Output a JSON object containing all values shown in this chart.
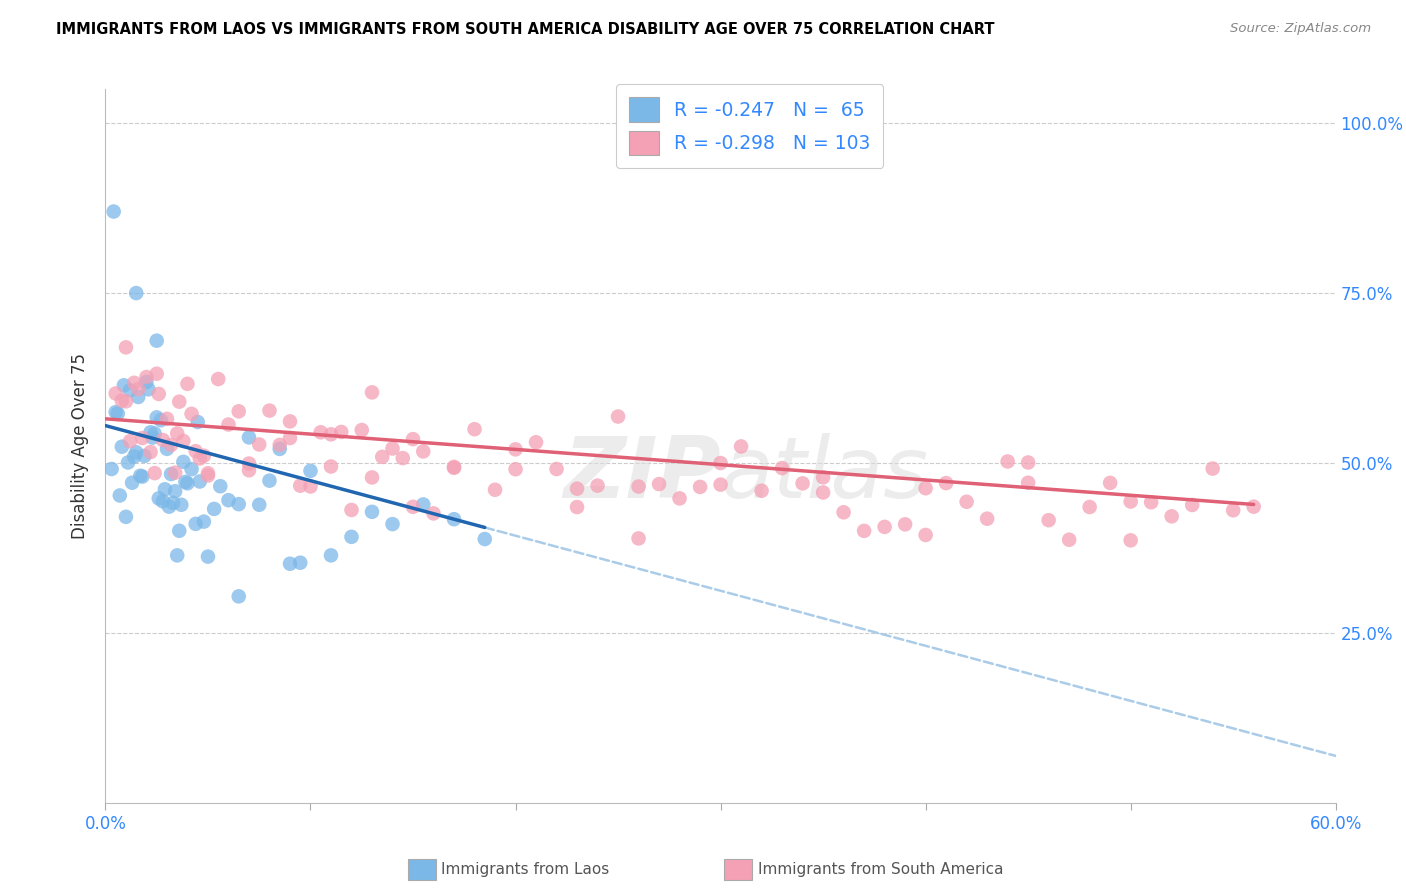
{
  "title": "IMMIGRANTS FROM LAOS VS IMMIGRANTS FROM SOUTH AMERICA DISABILITY AGE OVER 75 CORRELATION CHART",
  "source": "Source: ZipAtlas.com",
  "ylabel": "Disability Age Over 75",
  "xlabel_laos": "Immigrants from Laos",
  "xlabel_sa": "Immigrants from South America",
  "xmin": 0.0,
  "xmax": 0.6,
  "ymin": 0.0,
  "ymax": 1.05,
  "color_laos": "#7bb8e8",
  "color_sa": "#f4a0b5",
  "color_laos_line": "#2066b0",
  "color_sa_line": "#e06075",
  "color_laos_dashed": "#aacce8",
  "legend_r1": "R = -0.247",
  "legend_n1": "N =  65",
  "legend_r2": "R = -0.298",
  "legend_n2": "N = 103",
  "laos_x": [
    0.003,
    0.005,
    0.006,
    0.007,
    0.008,
    0.009,
    0.01,
    0.011,
    0.012,
    0.013,
    0.014,
    0.015,
    0.016,
    0.017,
    0.018,
    0.019,
    0.02,
    0.021,
    0.022,
    0.023,
    0.024,
    0.025,
    0.026,
    0.027,
    0.028,
    0.029,
    0.03,
    0.031,
    0.032,
    0.033,
    0.034,
    0.035,
    0.036,
    0.037,
    0.038,
    0.039,
    0.04,
    0.042,
    0.044,
    0.046,
    0.048,
    0.05,
    0.053,
    0.056,
    0.06,
    0.065,
    0.07,
    0.075,
    0.08,
    0.085,
    0.09,
    0.095,
    0.1,
    0.11,
    0.12,
    0.13,
    0.14,
    0.155,
    0.17,
    0.185,
    0.004,
    0.015,
    0.025,
    0.045,
    0.065
  ],
  "laos_y": [
    0.54,
    0.53,
    0.56,
    0.52,
    0.55,
    0.54,
    0.53,
    0.52,
    0.55,
    0.51,
    0.54,
    0.52,
    0.53,
    0.51,
    0.5,
    0.53,
    0.52,
    0.51,
    0.5,
    0.52,
    0.51,
    0.5,
    0.49,
    0.51,
    0.5,
    0.49,
    0.48,
    0.5,
    0.49,
    0.48,
    0.47,
    0.49,
    0.48,
    0.47,
    0.46,
    0.48,
    0.47,
    0.46,
    0.45,
    0.46,
    0.45,
    0.44,
    0.45,
    0.44,
    0.43,
    0.44,
    0.43,
    0.42,
    0.43,
    0.42,
    0.41,
    0.4,
    0.41,
    0.4,
    0.39,
    0.38,
    0.37,
    0.36,
    0.35,
    0.34,
    0.87,
    0.75,
    0.68,
    0.62,
    0.24
  ],
  "sa_x": [
    0.005,
    0.008,
    0.01,
    0.012,
    0.014,
    0.016,
    0.018,
    0.02,
    0.022,
    0.024,
    0.026,
    0.028,
    0.03,
    0.032,
    0.034,
    0.036,
    0.038,
    0.04,
    0.042,
    0.044,
    0.046,
    0.048,
    0.05,
    0.055,
    0.06,
    0.065,
    0.07,
    0.075,
    0.08,
    0.085,
    0.09,
    0.095,
    0.1,
    0.105,
    0.11,
    0.115,
    0.12,
    0.125,
    0.13,
    0.135,
    0.14,
    0.145,
    0.15,
    0.155,
    0.16,
    0.17,
    0.18,
    0.19,
    0.2,
    0.21,
    0.22,
    0.23,
    0.24,
    0.25,
    0.26,
    0.27,
    0.28,
    0.29,
    0.3,
    0.31,
    0.32,
    0.33,
    0.34,
    0.35,
    0.36,
    0.37,
    0.38,
    0.39,
    0.4,
    0.41,
    0.42,
    0.43,
    0.44,
    0.45,
    0.46,
    0.47,
    0.48,
    0.49,
    0.5,
    0.51,
    0.52,
    0.53,
    0.54,
    0.55,
    0.56,
    0.01,
    0.025,
    0.035,
    0.05,
    0.07,
    0.09,
    0.11,
    0.13,
    0.15,
    0.17,
    0.2,
    0.23,
    0.26,
    0.3,
    0.35,
    0.4,
    0.45,
    0.5
  ],
  "sa_y": [
    0.57,
    0.59,
    0.6,
    0.58,
    0.61,
    0.59,
    0.57,
    0.58,
    0.56,
    0.57,
    0.56,
    0.55,
    0.57,
    0.56,
    0.55,
    0.54,
    0.56,
    0.55,
    0.54,
    0.53,
    0.55,
    0.54,
    0.53,
    0.54,
    0.55,
    0.53,
    0.54,
    0.52,
    0.53,
    0.54,
    0.52,
    0.51,
    0.52,
    0.53,
    0.51,
    0.52,
    0.51,
    0.52,
    0.5,
    0.51,
    0.52,
    0.5,
    0.51,
    0.5,
    0.49,
    0.51,
    0.5,
    0.49,
    0.5,
    0.49,
    0.48,
    0.49,
    0.48,
    0.49,
    0.47,
    0.48,
    0.47,
    0.46,
    0.47,
    0.46,
    0.47,
    0.46,
    0.45,
    0.46,
    0.45,
    0.44,
    0.45,
    0.44,
    0.45,
    0.44,
    0.43,
    0.44,
    0.43,
    0.44,
    0.43,
    0.42,
    0.43,
    0.42,
    0.43,
    0.42,
    0.43,
    0.42,
    0.43,
    0.44,
    0.43,
    0.66,
    0.62,
    0.6,
    0.56,
    0.54,
    0.53,
    0.52,
    0.5,
    0.48,
    0.5,
    0.49,
    0.47,
    0.46,
    0.44,
    0.43,
    0.43,
    0.41,
    0.43
  ]
}
